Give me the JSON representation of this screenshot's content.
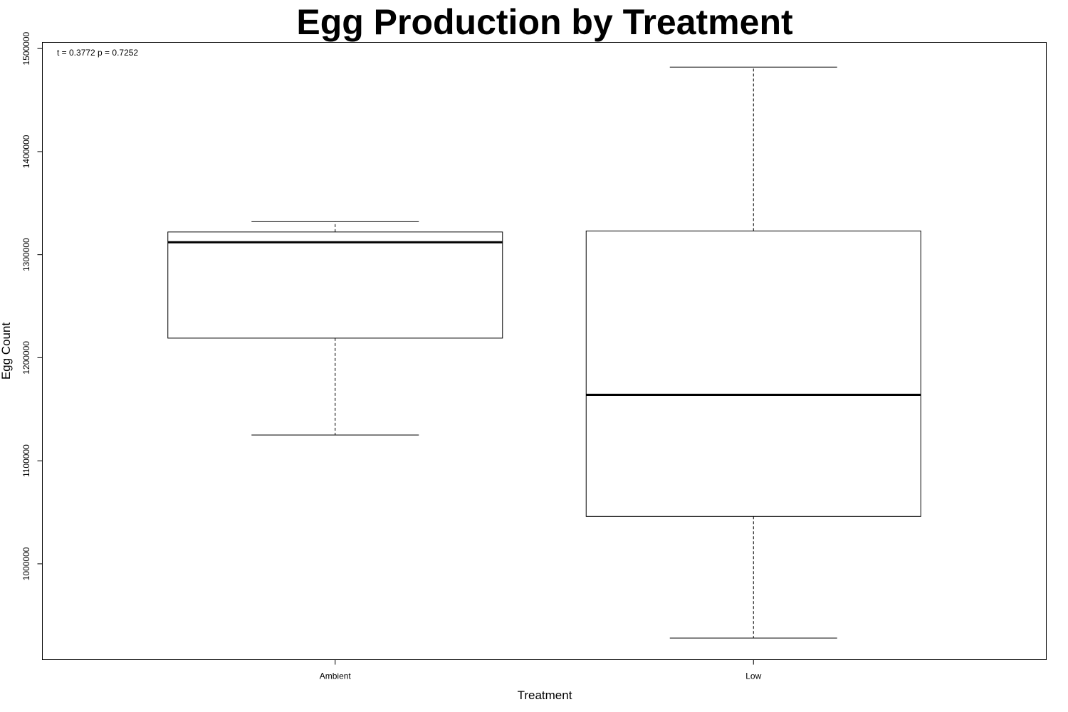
{
  "chart_data": {
    "type": "boxplot",
    "title": "Egg Production by Treatment",
    "xlabel": "Treatment",
    "ylabel": "Egg Count",
    "annotation": "t = 0.3772 p = 0.7252",
    "ylim": [
      907000,
      1506000
    ],
    "yticks": [
      1000000,
      1100000,
      1200000,
      1300000,
      1400000,
      1500000
    ],
    "ytick_labels": [
      "1000000",
      "1100000",
      "1200000",
      "1300000",
      "1400000",
      "1500000"
    ],
    "categories": [
      "Ambient",
      "Low"
    ],
    "boxes": [
      {
        "category": "Ambient",
        "whisker_low": 1125000,
        "q1": 1219000,
        "median": 1312000,
        "q3": 1322000,
        "whisker_high": 1332000
      },
      {
        "category": "Low",
        "whisker_low": 928000,
        "q1": 1046000,
        "median": 1164000,
        "q3": 1323000,
        "whisker_high": 1482000
      }
    ],
    "grid": false,
    "legend": "none"
  }
}
